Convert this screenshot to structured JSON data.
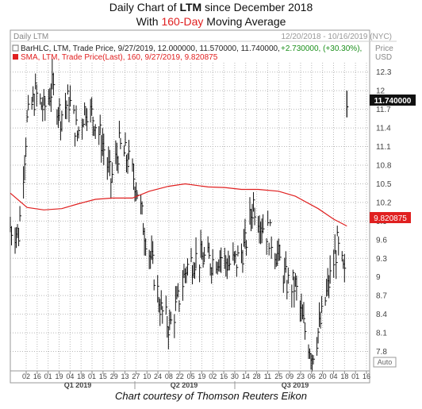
{
  "title": {
    "line1_pre": "Daily Chart of ",
    "line1_ticker": "LTM",
    "line1_post": " since December 2018",
    "line2_pre": "With ",
    "line2_highlight": "160-Day",
    "line2_post": " Moving Average"
  },
  "credit": "Chart courtesy of Thomson Reuters Eikon",
  "panel": {
    "name": "Daily LTM",
    "date_range": "12/20/2018 - 10/16/2019 (NYC)",
    "price_label": "Price",
    "currency_label": "USD",
    "auto_label": "Auto",
    "legend_bar": "BarHLC, LTM, Trade Price, 9/27/2019, 12.000000, 11.570000, 11.740000,",
    "legend_bar_change": "+2.730000, (+30.30%),",
    "legend_sma": "SMA, LTM, Trade Price(Last), 160, 9/27/2019, 9.820875",
    "last_price_tag": "11.740000",
    "sma_tag": "9.820875"
  },
  "colors": {
    "bars": "#111111",
    "sma": "#e02020",
    "grid": "#b8b8b8",
    "tag_bg": "#e02020",
    "change": "#1a8f1a"
  },
  "chart_data": {
    "type": "line",
    "ylim": [
      7.5,
      12.45
    ],
    "y_ticks": [
      "12.3",
      "12",
      "11.7",
      "11.4",
      "11.1",
      "10.8",
      "10.5",
      "10.2",
      "9.9",
      "9.6",
      "9.3",
      "9",
      "8.7",
      "8.4",
      "8.1",
      "7.8"
    ],
    "x_tick_labels": [
      "02",
      "16",
      "01",
      "19",
      "04",
      "18",
      "01",
      "15",
      "29",
      "13",
      "27",
      "10",
      "24",
      "08",
      "22",
      "05",
      "19",
      "02",
      "16",
      "30",
      "14",
      "28",
      "11",
      "25",
      "09",
      "23",
      "06",
      "20",
      "04",
      "18",
      "01",
      "16"
    ],
    "x_periods": [
      "Q1 2019",
      "Q2 2019",
      "Q3 2019"
    ],
    "series": [
      {
        "name": "SMA, LTM, Trade Price(Last), 160",
        "kind": "sma",
        "x": [
          "2018-12-20",
          "2019-01-03",
          "2019-01-17",
          "2019-02-01",
          "2019-02-15",
          "2019-03-01",
          "2019-03-15",
          "2019-04-01",
          "2019-04-15",
          "2019-05-01",
          "2019-05-15",
          "2019-06-03",
          "2019-06-17",
          "2019-07-01",
          "2019-07-15",
          "2019-08-01",
          "2019-08-15",
          "2019-09-03",
          "2019-09-16",
          "2019-09-27"
        ],
        "values": [
          10.35,
          10.12,
          10.08,
          10.1,
          10.18,
          10.25,
          10.27,
          10.27,
          10.38,
          10.46,
          10.5,
          10.45,
          10.44,
          10.41,
          10.41,
          10.38,
          10.3,
          10.1,
          9.93,
          9.82
        ]
      },
      {
        "name": "BarHLC, LTM, Trade Price",
        "kind": "price_close",
        "x": [
          "2018-12-20",
          "2018-12-27",
          "2019-01-03",
          "2019-01-10",
          "2019-01-17",
          "2019-01-24",
          "2019-01-31",
          "2019-02-07",
          "2019-02-14",
          "2019-02-21",
          "2019-02-28",
          "2019-03-07",
          "2019-03-14",
          "2019-03-21",
          "2019-03-28",
          "2019-04-04",
          "2019-04-11",
          "2019-04-18",
          "2019-04-25",
          "2019-05-02",
          "2019-05-09",
          "2019-05-16",
          "2019-05-23",
          "2019-05-30",
          "2019-06-06",
          "2019-06-13",
          "2019-06-20",
          "2019-06-27",
          "2019-07-04",
          "2019-07-11",
          "2019-07-18",
          "2019-07-25",
          "2019-08-01",
          "2019-08-08",
          "2019-08-15",
          "2019-08-22",
          "2019-08-29",
          "2019-09-05",
          "2019-09-12",
          "2019-09-19",
          "2019-09-26",
          "2019-09-27"
        ],
        "values": [
          9.8,
          9.7,
          11.5,
          11.95,
          11.7,
          12.05,
          11.6,
          11.85,
          11.3,
          11.75,
          11.55,
          11.15,
          10.55,
          11.1,
          10.9,
          10.5,
          9.75,
          9.15,
          8.45,
          8.2,
          8.6,
          9.15,
          9.3,
          9.3,
          9.25,
          9.35,
          9.2,
          9.25,
          9.5,
          10.2,
          9.85,
          9.65,
          9.3,
          8.9,
          8.85,
          8.2,
          7.75,
          8.25,
          8.9,
          9.5,
          8.9,
          11.74
        ]
      }
    ]
  }
}
